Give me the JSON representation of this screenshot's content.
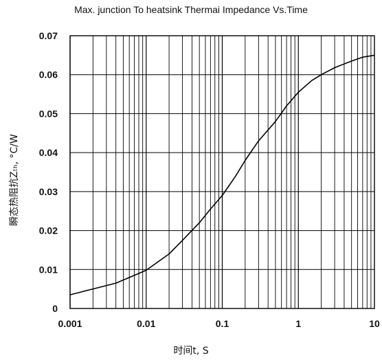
{
  "chart_data": {
    "type": "line",
    "title": "Max. junction To heatsink Thermai Impedance Vs.Time",
    "xlabel": "时间t, S",
    "ylabel": "瞬态热阻抗Zₜₕ, °C/W",
    "x_scale": "log",
    "xlim": [
      0.001,
      10
    ],
    "ylim": [
      0,
      0.07
    ],
    "x_ticks": [
      "0.001",
      "0.01",
      "0.1",
      "1",
      "10"
    ],
    "y_ticks": [
      "0",
      "0.01",
      "0.02",
      "0.03",
      "0.04",
      "0.05",
      "0.06",
      "0.07"
    ],
    "grid": true,
    "series": [
      {
        "x": [
          0.001,
          0.002,
          0.004,
          0.007,
          0.01,
          0.02,
          0.03,
          0.05,
          0.07,
          0.1,
          0.15,
          0.2,
          0.3,
          0.5,
          0.7,
          1,
          1.5,
          2,
          3,
          5,
          7,
          10
        ],
        "y": [
          0.0035,
          0.005,
          0.0065,
          0.0085,
          0.0098,
          0.014,
          0.0175,
          0.022,
          0.0255,
          0.029,
          0.034,
          0.038,
          0.043,
          0.048,
          0.052,
          0.0555,
          0.0585,
          0.06,
          0.0618,
          0.0635,
          0.0645,
          0.065
        ]
      }
    ]
  }
}
